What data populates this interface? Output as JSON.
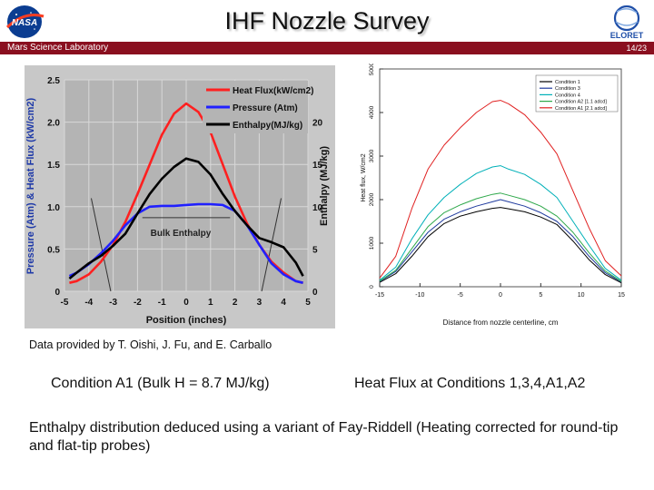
{
  "header": {
    "title": "IHF Nozzle Survey",
    "mission": "Mars Science Laboratory",
    "page_number": "14/23",
    "logo_left": "nasa-logo",
    "logo_right": "eloret-logo"
  },
  "credit": "Data provided by T. Oishi, J. Fu, and E. Carballo",
  "captions": {
    "left": "Condition A1 (Bulk H = 8.7 MJ/kg)",
    "right": "Heat Flux at Conditions 1,3,4,A1,A2"
  },
  "description": "Enthalpy distribution deduced using a variant of Fay-Riddell (Heating corrected for round-tip and flat-tip probes)",
  "chart_data": [
    {
      "type": "line",
      "xlabel": "Position  (inches)",
      "ylabel_left": "Pressure (Atm) & Heat Flux (kW/cm2)",
      "ylabel_right": "Enthalpy (MJ/kg)",
      "xlim": [
        -5,
        5
      ],
      "ylim_left": [
        0,
        2.5
      ],
      "ylim_right": [
        0,
        25
      ],
      "x_ticks": [
        "-5",
        "-4",
        "-3",
        "-2",
        "-1",
        "0",
        "1",
        "2",
        "3",
        "4",
        "5"
      ],
      "y_ticks_left": [
        "0",
        "0.5",
        "1.0",
        "1.5",
        "2.0",
        "2.5"
      ],
      "y_ticks_right": [
        "0",
        "5",
        "10",
        "15",
        "20"
      ],
      "grid": true,
      "legend_position": "top-right",
      "annotation": "Bulk Enthalpy",
      "bulk_enthalpy": 8.7,
      "colors": {
        "heat_flux": "#ff2020",
        "pressure": "#2020ff",
        "enthalpy": "#000000"
      },
      "series": [
        {
          "name": "Heat Flux(kW/cm2)",
          "axis": "left",
          "color": "#ff2020",
          "x": [
            -4.8,
            -4.5,
            -4,
            -3.5,
            -3,
            -2.5,
            -2,
            -1.5,
            -1,
            -0.5,
            0,
            0.5,
            1,
            1.5,
            2,
            2.5,
            3,
            3.5,
            4,
            4.5,
            4.8
          ],
          "y": [
            0.1,
            0.12,
            0.2,
            0.35,
            0.55,
            0.82,
            1.15,
            1.5,
            1.85,
            2.1,
            2.22,
            2.12,
            1.88,
            1.5,
            1.12,
            0.8,
            0.55,
            0.35,
            0.22,
            0.12,
            0.1
          ]
        },
        {
          "name": "Pressure (Atm)",
          "axis": "left",
          "color": "#2020ff",
          "x": [
            -4.8,
            -4.5,
            -4,
            -3.5,
            -3,
            -2.5,
            -2,
            -1.5,
            -1,
            -0.5,
            0,
            0.5,
            1,
            1.5,
            2,
            2.5,
            3,
            3.5,
            4,
            4.5,
            4.8
          ],
          "y": [
            0.18,
            0.22,
            0.32,
            0.45,
            0.6,
            0.78,
            0.92,
            1.0,
            1.01,
            1.01,
            1.02,
            1.03,
            1.03,
            1.02,
            0.95,
            0.78,
            0.55,
            0.33,
            0.2,
            0.12,
            0.1
          ]
        },
        {
          "name": "Enthalpy(MJ/kg)",
          "axis": "right",
          "color": "#000000",
          "x": [
            -4.8,
            -4.5,
            -4,
            -3.5,
            -3,
            -2.5,
            -2,
            -1.5,
            -1,
            -0.5,
            0,
            0.5,
            1,
            1.5,
            2,
            2.5,
            3,
            3.5,
            4,
            4.5,
            4.8
          ],
          "y": [
            1.5,
            2.2,
            3.3,
            4.2,
            5.4,
            6.8,
            9.2,
            11.5,
            13.3,
            14.7,
            15.7,
            15.3,
            13.8,
            11.5,
            9.5,
            7.8,
            6.3,
            5.8,
            5.2,
            3.4,
            1.8
          ]
        }
      ]
    },
    {
      "type": "line",
      "xlabel": "Distance from nozzle centerline, cm",
      "ylabel": "Heat flux, W/cm2",
      "xlim": [
        -15,
        15
      ],
      "ylim": [
        0,
        5000
      ],
      "x_ticks": [
        "-15",
        "-10",
        "-5",
        "0",
        "5",
        "10",
        "15"
      ],
      "y_ticks": [
        "0",
        "1000",
        "2000",
        "3000",
        "4000",
        "5000"
      ],
      "legend_position": "top-right",
      "series": [
        {
          "name": "Condition 1",
          "color": "#000000",
          "x": [
            -15,
            -13,
            -11,
            -9,
            -7,
            -5,
            -3,
            -1,
            0,
            1,
            3,
            5,
            7,
            9,
            11,
            13,
            15
          ],
          "y": [
            100,
            300,
            700,
            1150,
            1450,
            1620,
            1720,
            1800,
            1820,
            1790,
            1720,
            1600,
            1430,
            1050,
            620,
            280,
            90
          ]
        },
        {
          "name": "Condition 3",
          "color": "#1f3a9e",
          "x": [
            -15,
            -13,
            -11,
            -9,
            -7,
            -5,
            -3,
            -1,
            0,
            1,
            3,
            5,
            7,
            9,
            11,
            13,
            15
          ],
          "y": [
            120,
            350,
            800,
            1250,
            1550,
            1720,
            1850,
            1950,
            2000,
            1950,
            1850,
            1700,
            1500,
            1150,
            700,
            320,
            110
          ]
        },
        {
          "name": "Condition 4",
          "color": "#00b0b8",
          "x": [
            -15,
            -13,
            -11,
            -9,
            -7,
            -5,
            -3,
            -1,
            0,
            1,
            3,
            5,
            7,
            9,
            11,
            13,
            15
          ],
          "y": [
            150,
            450,
            1100,
            1650,
            2050,
            2350,
            2600,
            2750,
            2780,
            2700,
            2580,
            2350,
            2050,
            1500,
            950,
            420,
            150
          ]
        },
        {
          "name": "Condition A2 [1.1 adcd]",
          "color": "#2ea84a",
          "x": [
            -15,
            -13,
            -11,
            -9,
            -7,
            -5,
            -3,
            -1,
            0,
            1,
            3,
            5,
            7,
            9,
            11,
            13,
            15
          ],
          "y": [
            130,
            380,
            880,
            1380,
            1700,
            1880,
            2020,
            2120,
            2150,
            2100,
            2000,
            1850,
            1620,
            1250,
            780,
            360,
            120
          ]
        },
        {
          "name": "Condition A1 [2.1 adcd]",
          "color": "#e02020",
          "x": [
            -15,
            -13,
            -11,
            -9,
            -7,
            -5,
            -3,
            -1,
            0,
            1,
            3,
            5,
            7,
            9,
            11,
            13,
            15
          ],
          "y": [
            200,
            700,
            1800,
            2700,
            3250,
            3650,
            4000,
            4250,
            4280,
            4200,
            3950,
            3550,
            3050,
            2200,
            1350,
            600,
            250
          ]
        }
      ]
    }
  ]
}
